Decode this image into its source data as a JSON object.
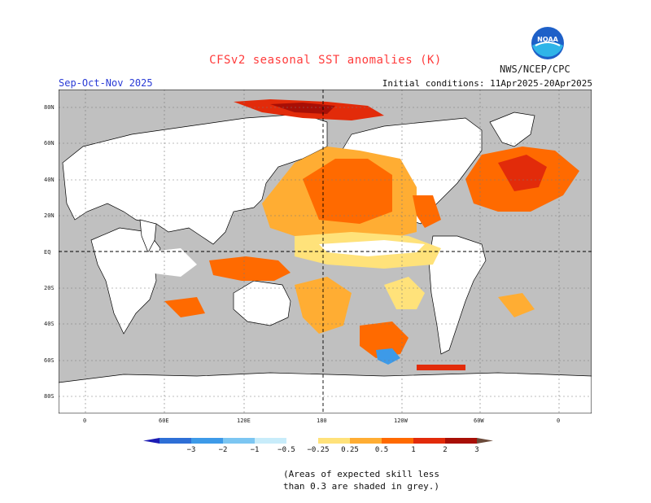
{
  "title": "CFSv2 seasonal SST anomalies (K)",
  "agency": "NWS/NCEP/CPC",
  "logo_text": "NOAA",
  "season": "Sep-Oct-Nov 2025",
  "initial_conditions": "Initial conditions: 11Apr2025-20Apr2025",
  "lat_labels": [
    "80N",
    "60N",
    "40N",
    "20N",
    "EQ",
    "20S",
    "40S",
    "60S",
    "80S"
  ],
  "lon_labels": [
    "0",
    "60E",
    "120E",
    "180",
    "120W",
    "60W",
    "0"
  ],
  "colorbar": {
    "ticks": [
      "−3",
      "−2",
      "−1",
      "−0.5",
      "−0.25",
      "0.25",
      "0.5",
      "1",
      "2",
      "3"
    ],
    "colors": [
      "#1c1cb4",
      "#2e6fd6",
      "#3d9ae8",
      "#7cc6f2",
      "#c8ecfa",
      "#ffffff",
      "#ffe27a",
      "#ffad33",
      "#ff6a00",
      "#e22b0a",
      "#a80f06",
      "#6b4a3a"
    ]
  },
  "skill_note": [
    "(Areas of expected skill less",
    "than 0.3 are shaded in grey.)"
  ],
  "colors": {
    "grey_low_skill": "#c0c0c0",
    "land": "#ffffff",
    "grid": "#7a7a7a"
  }
}
